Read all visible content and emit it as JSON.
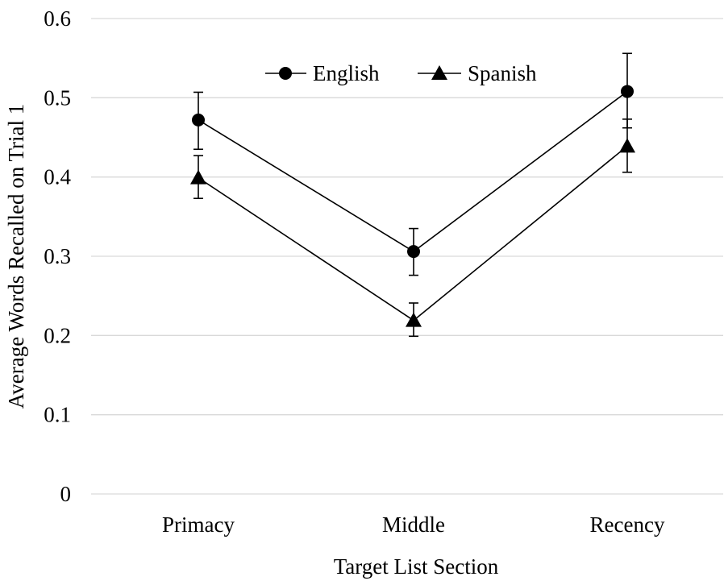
{
  "chart_data": {
    "type": "line",
    "categories": [
      "Primacy",
      "Middle",
      "Recency"
    ],
    "series": [
      {
        "name": "English",
        "marker": "circle",
        "values": [
          0.472,
          0.306,
          0.508
        ],
        "error_low": [
          0.435,
          0.276,
          0.462
        ],
        "error_high": [
          0.507,
          0.335,
          0.556
        ]
      },
      {
        "name": "Spanish",
        "marker": "triangle",
        "values": [
          0.399,
          0.219,
          0.439
        ],
        "error_low": [
          0.373,
          0.199,
          0.406
        ],
        "error_high": [
          0.427,
          0.241,
          0.473
        ]
      }
    ],
    "xlabel": "Target List Section",
    "ylabel": "Average Words Recalled on Trial 1",
    "ylim": [
      0,
      0.6
    ],
    "yticks": [
      "0",
      "0.1",
      "0.2",
      "0.3",
      "0.4",
      "0.5",
      "0.6"
    ],
    "grid": true,
    "legend_position": "top-center",
    "colors": {
      "line": "#000000",
      "grid": "#d9d9d9",
      "background": "#ffffff"
    }
  }
}
